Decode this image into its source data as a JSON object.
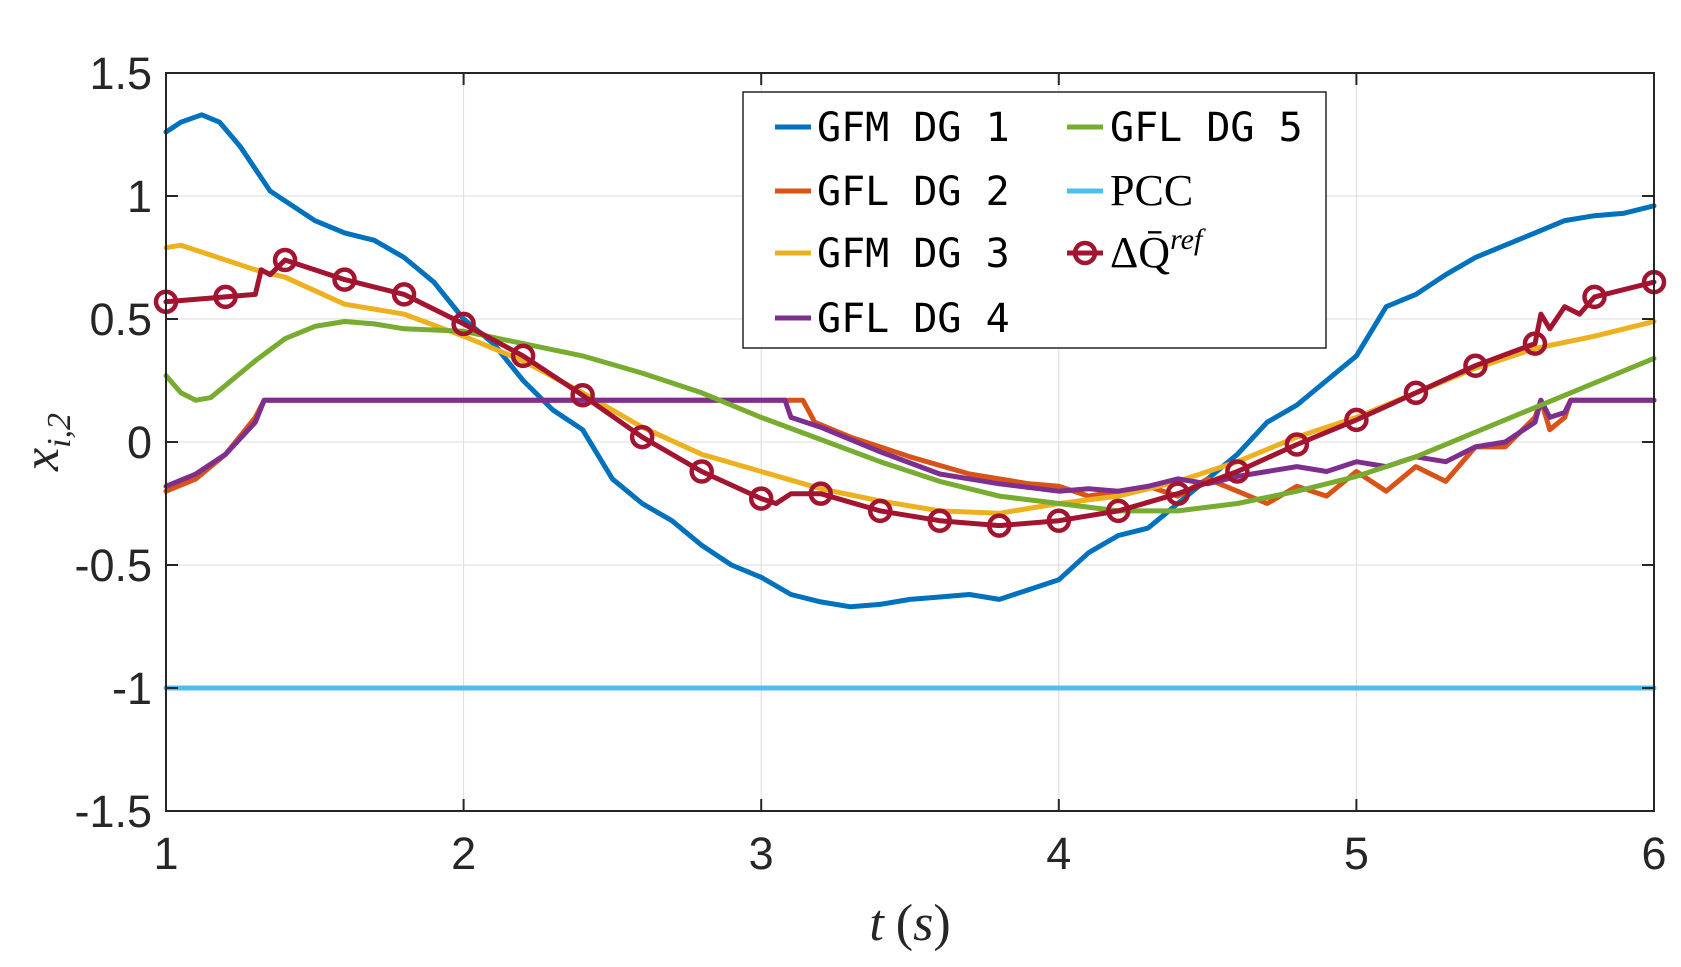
{
  "chart_data": {
    "type": "line",
    "title": "",
    "xlabel": "t (s)",
    "ylabel": "x_{i,2}",
    "xlim": [
      1,
      6
    ],
    "ylim": [
      -1.5,
      1.5
    ],
    "grid": true,
    "legend_position": "top-center",
    "xticks": [
      1,
      2,
      3,
      4,
      5,
      6
    ],
    "yticks": [
      1.5,
      1,
      0.5,
      0,
      -0.5,
      -1,
      -1.5
    ],
    "xtick_labels": [
      "1",
      "2",
      "3",
      "4",
      "5",
      "6"
    ],
    "ytick_labels": [
      "1.5",
      "1",
      "0.5",
      "0",
      "-0.5",
      "-1",
      "-1.5"
    ],
    "xlabel_parts": {
      "var": "t",
      "unit": "(s)"
    },
    "ylabel_parts": {
      "var": "x",
      "sub": "i,2"
    },
    "series": [
      {
        "name": "GFM DG 1",
        "color": "#0072BD",
        "marker": "none",
        "x": [
          1.0,
          1.05,
          1.12,
          1.18,
          1.25,
          1.35,
          1.5,
          1.6,
          1.7,
          1.8,
          1.9,
          2.0,
          2.1,
          2.2,
          2.3,
          2.4,
          2.5,
          2.6,
          2.7,
          2.8,
          2.9,
          3.0,
          3.1,
          3.2,
          3.3,
          3.4,
          3.5,
          3.6,
          3.7,
          3.8,
          3.9,
          4.0,
          4.1,
          4.2,
          4.3,
          4.4,
          4.5,
          4.6,
          4.7,
          4.8,
          4.9,
          5.0,
          5.1,
          5.2,
          5.3,
          5.4,
          5.5,
          5.6,
          5.7,
          5.8,
          5.9,
          6.0
        ],
        "y": [
          1.26,
          1.3,
          1.33,
          1.3,
          1.2,
          1.02,
          0.9,
          0.85,
          0.82,
          0.75,
          0.65,
          0.5,
          0.4,
          0.25,
          0.13,
          0.05,
          -0.15,
          -0.25,
          -0.32,
          -0.42,
          -0.5,
          -0.55,
          -0.62,
          -0.65,
          -0.67,
          -0.66,
          -0.64,
          -0.63,
          -0.62,
          -0.64,
          -0.6,
          -0.56,
          -0.45,
          -0.38,
          -0.35,
          -0.25,
          -0.15,
          -0.05,
          0.08,
          0.15,
          0.25,
          0.35,
          0.55,
          0.6,
          0.68,
          0.75,
          0.8,
          0.85,
          0.9,
          0.92,
          0.93,
          0.96
        ]
      },
      {
        "name": "GFL DG 2",
        "color": "#D95319",
        "marker": "none",
        "x": [
          1.0,
          1.1,
          1.2,
          1.3,
          1.33,
          1.35,
          1.5,
          2.0,
          2.5,
          3.0,
          3.14,
          3.18,
          3.3,
          3.5,
          3.7,
          3.9,
          4.0,
          4.1,
          4.2,
          4.3,
          4.4,
          4.5,
          4.6,
          4.7,
          4.8,
          4.9,
          5.0,
          5.1,
          5.2,
          5.3,
          5.4,
          5.5,
          5.6,
          5.62,
          5.65,
          5.7,
          5.72,
          5.75,
          6.0
        ],
        "y": [
          -0.2,
          -0.15,
          -0.05,
          0.1,
          0.17,
          0.17,
          0.17,
          0.17,
          0.17,
          0.17,
          0.17,
          0.08,
          0.02,
          -0.06,
          -0.13,
          -0.17,
          -0.18,
          -0.22,
          -0.2,
          -0.18,
          -0.22,
          -0.15,
          -0.2,
          -0.25,
          -0.18,
          -0.22,
          -0.12,
          -0.2,
          -0.1,
          -0.16,
          -0.02,
          -0.02,
          0.1,
          0.17,
          0.05,
          0.1,
          0.17,
          0.17,
          0.17
        ]
      },
      {
        "name": "GFM DG 3",
        "color": "#EDB120",
        "marker": "none",
        "x": [
          1.0,
          1.05,
          1.15,
          1.3,
          1.4,
          1.6,
          1.8,
          2.0,
          2.2,
          2.4,
          2.6,
          2.8,
          3.0,
          3.2,
          3.4,
          3.6,
          3.8,
          4.0,
          4.2,
          4.4,
          4.6,
          4.8,
          5.0,
          5.2,
          5.4,
          5.6,
          5.8,
          6.0
        ],
        "y": [
          0.79,
          0.8,
          0.76,
          0.7,
          0.67,
          0.56,
          0.52,
          0.43,
          0.33,
          0.2,
          0.06,
          -0.05,
          -0.12,
          -0.19,
          -0.24,
          -0.28,
          -0.29,
          -0.25,
          -0.22,
          -0.16,
          -0.08,
          0.02,
          0.1,
          0.2,
          0.3,
          0.38,
          0.43,
          0.49
        ]
      },
      {
        "name": "GFL DG 4",
        "color": "#7E2F8E",
        "marker": "none",
        "x": [
          1.0,
          1.1,
          1.2,
          1.3,
          1.33,
          1.35,
          1.5,
          2.0,
          2.5,
          3.0,
          3.08,
          3.1,
          3.2,
          3.4,
          3.6,
          3.8,
          4.0,
          4.1,
          4.2,
          4.3,
          4.4,
          4.5,
          4.6,
          4.7,
          4.8,
          4.9,
          5.0,
          5.1,
          5.2,
          5.3,
          5.4,
          5.5,
          5.6,
          5.62,
          5.65,
          5.7,
          5.72,
          5.75,
          6.0
        ],
        "y": [
          -0.18,
          -0.13,
          -0.05,
          0.08,
          0.17,
          0.17,
          0.17,
          0.17,
          0.17,
          0.17,
          0.17,
          0.1,
          0.06,
          -0.04,
          -0.13,
          -0.17,
          -0.2,
          -0.19,
          -0.2,
          -0.18,
          -0.15,
          -0.17,
          -0.14,
          -0.12,
          -0.1,
          -0.12,
          -0.08,
          -0.1,
          -0.06,
          -0.08,
          -0.02,
          0.0,
          0.08,
          0.17,
          0.1,
          0.12,
          0.17,
          0.17,
          0.17
        ]
      },
      {
        "name": "GFL DG 5",
        "color": "#77AC30",
        "marker": "none",
        "x": [
          1.0,
          1.05,
          1.1,
          1.15,
          1.2,
          1.3,
          1.4,
          1.5,
          1.6,
          1.7,
          1.8,
          2.0,
          2.2,
          2.4,
          2.6,
          2.8,
          3.0,
          3.2,
          3.4,
          3.6,
          3.8,
          4.0,
          4.2,
          4.4,
          4.6,
          4.8,
          5.0,
          5.2,
          5.4,
          5.6,
          5.8,
          6.0
        ],
        "y": [
          0.27,
          0.2,
          0.17,
          0.18,
          0.23,
          0.33,
          0.42,
          0.47,
          0.49,
          0.48,
          0.46,
          0.45,
          0.4,
          0.35,
          0.28,
          0.2,
          0.1,
          0.01,
          -0.08,
          -0.16,
          -0.22,
          -0.25,
          -0.28,
          -0.28,
          -0.25,
          -0.2,
          -0.14,
          -0.06,
          0.04,
          0.14,
          0.24,
          0.34
        ]
      },
      {
        "name": "PCC",
        "color": "#4DBEEE",
        "marker": "none",
        "x": [
          1.0,
          6.0
        ],
        "y": [
          -1.0,
          -1.0
        ]
      },
      {
        "name": "ΔQ̄ref",
        "color": "#A2142F",
        "marker": "circle",
        "x": [
          1.0,
          1.2,
          1.3,
          1.32,
          1.35,
          1.4,
          1.6,
          1.8,
          2.0,
          2.2,
          2.4,
          2.6,
          2.8,
          3.0,
          3.05,
          3.1,
          3.2,
          3.4,
          3.6,
          3.8,
          4.0,
          4.2,
          4.4,
          4.6,
          4.8,
          5.0,
          5.2,
          5.4,
          5.6,
          5.62,
          5.65,
          5.7,
          5.75,
          5.8,
          6.0
        ],
        "y": [
          0.57,
          0.59,
          0.6,
          0.7,
          0.68,
          0.74,
          0.66,
          0.6,
          0.48,
          0.35,
          0.19,
          0.02,
          -0.12,
          -0.23,
          -0.25,
          -0.21,
          -0.21,
          -0.28,
          -0.32,
          -0.34,
          -0.32,
          -0.28,
          -0.21,
          -0.12,
          -0.01,
          0.09,
          0.2,
          0.31,
          0.4,
          0.52,
          0.46,
          0.55,
          0.52,
          0.59,
          0.65
        ],
        "marker_x": [
          1.0,
          1.2,
          1.4,
          1.6,
          1.8,
          2.0,
          2.2,
          2.4,
          2.6,
          2.8,
          3.0,
          3.2,
          3.4,
          3.6,
          3.8,
          4.0,
          4.2,
          4.4,
          4.6,
          4.8,
          5.0,
          5.2,
          5.4,
          5.6,
          5.8,
          6.0
        ],
        "marker_y": [
          0.57,
          0.59,
          0.74,
          0.66,
          0.6,
          0.48,
          0.35,
          0.19,
          0.02,
          -0.12,
          -0.23,
          -0.21,
          -0.28,
          -0.32,
          -0.34,
          -0.32,
          -0.28,
          -0.21,
          -0.12,
          -0.01,
          0.09,
          0.2,
          0.31,
          0.4,
          0.59,
          0.65
        ]
      }
    ],
    "legend": {
      "entries": [
        {
          "label": "GFM DG 1",
          "series": 0,
          "style": "mono"
        },
        {
          "label": "GFL DG 2",
          "series": 1,
          "style": "mono"
        },
        {
          "label": "GFM DG 3",
          "series": 2,
          "style": "mono"
        },
        {
          "label": "GFL DG 4",
          "series": 3,
          "style": "mono"
        },
        {
          "label": "GFL DG 5",
          "series": 4,
          "style": "mono"
        },
        {
          "label": "PCC",
          "series": 5,
          "style": "serif"
        },
        {
          "label": "ΔQ̄",
          "superscript": "ref",
          "series": 6,
          "style": "serif"
        }
      ]
    }
  }
}
